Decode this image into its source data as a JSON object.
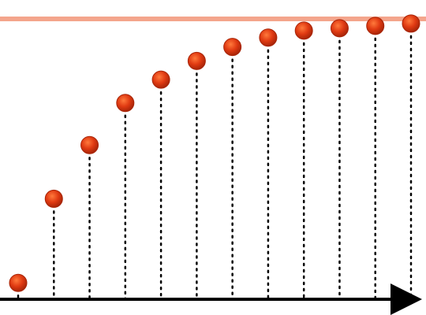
{
  "chart_data": {
    "type": "scatter",
    "title": "",
    "xlabel": "",
    "ylabel": "",
    "x": [
      0,
      1,
      2,
      3,
      4,
      5,
      6,
      7,
      8,
      9,
      10,
      11
    ],
    "values": [
      0.07,
      0.43,
      0.66,
      0.84,
      0.94,
      1.02,
      1.08,
      1.12,
      1.15,
      1.16,
      1.17,
      1.18
    ],
    "xlim": [
      0,
      11
    ],
    "ylim": [
      0,
      1.2
    ],
    "asymptote": 1.2,
    "grid": false,
    "legend": "none",
    "colors": {
      "point": "#e03a12",
      "point_highlight": "#ff7a3c",
      "point_edge": "#a82508",
      "asymptote": "#f4a58c",
      "axis": "#000000",
      "dropline": "#000000"
    }
  }
}
